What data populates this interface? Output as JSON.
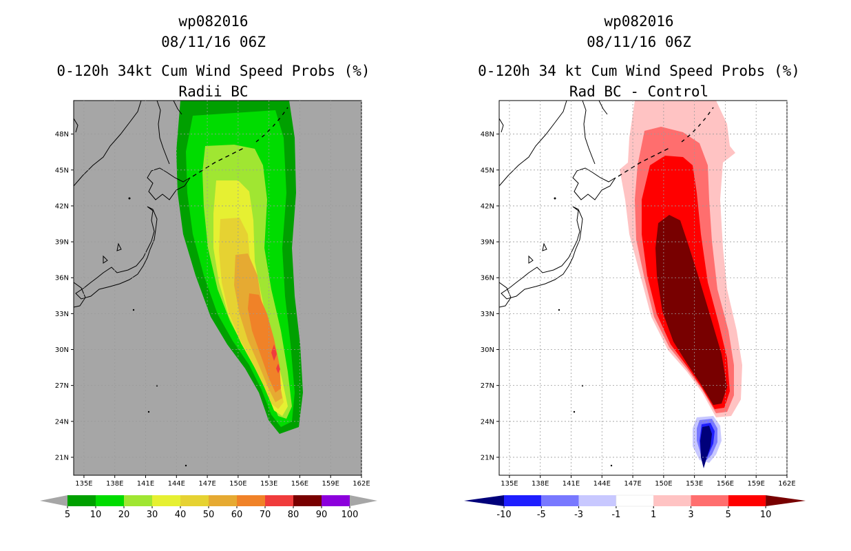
{
  "panels": [
    {
      "title_lines": [
        "wp082016",
        "08/11/16 06Z",
        "0-120h 34kt Cum Wind Speed Probs (%)",
        "Radii BC"
      ],
      "legend": [
        "5",
        "10",
        "20",
        "30",
        "40",
        "50",
        "60",
        "70",
        "80",
        "90",
        "100"
      ]
    },
    {
      "title_lines": [
        "wp082016",
        "08/11/16 06Z",
        "0-120h 34 kt Cum Wind Speed Probs (%)",
        "Rad BC - Control"
      ],
      "legend": [
        "-10",
        "-5",
        "-3",
        "-1",
        "1",
        "3",
        "5",
        "10"
      ]
    }
  ],
  "chart_data": [
    {
      "type": "heatmap",
      "title": "0-120h 34kt Cum Wind Speed Probs (%)",
      "subtitle": "Radii BC",
      "storm": "wp082016",
      "time": "08/11/16 06Z",
      "x_tick_labels": [
        "135E",
        "138E",
        "141E",
        "144E",
        "147E",
        "150E",
        "153E",
        "156E",
        "159E",
        "162E"
      ],
      "y_tick_labels": [
        "21N",
        "24N",
        "27N",
        "30N",
        "33N",
        "36N",
        "39N",
        "42N",
        "45N",
        "48N"
      ],
      "xlim": [
        134.0,
        162.0
      ],
      "ylim": [
        19.5,
        50.8
      ],
      "contour_levels": [
        5,
        10,
        20,
        30,
        40,
        50,
        60,
        70,
        80,
        90,
        100
      ],
      "level_colors": [
        "#00a000",
        "#00dc00",
        "#a0e632",
        "#e6f032",
        "#e6d232",
        "#e6aa32",
        "#f08228",
        "#f03c3c",
        "#780000",
        "#8c00dc"
      ],
      "background_color": "#a6a6a6",
      "max_value_approx": 72
    },
    {
      "type": "heatmap",
      "title": "0-120h 34 kt Cum Wind Speed Probs (%)",
      "subtitle": "Rad BC - Control",
      "storm": "wp082016",
      "time": "08/11/16 06Z",
      "x_tick_labels": [
        "135E",
        "138E",
        "141E",
        "144E",
        "147E",
        "150E",
        "153E",
        "156E",
        "159E",
        "162E"
      ],
      "y_tick_labels": [
        "21N",
        "24N",
        "27N",
        "30N",
        "33N",
        "36N",
        "39N",
        "42N",
        "45N",
        "48N"
      ],
      "xlim": [
        134.0,
        162.0
      ],
      "ylim": [
        19.5,
        50.8
      ],
      "contour_levels": [
        -10,
        -5,
        -3,
        -1,
        1,
        3,
        5,
        10
      ],
      "level_colors": [
        "#00007a",
        "#1e1eff",
        "#7878ff",
        "#c8c8ff",
        "#ffffff",
        "#ffc3c3",
        "#ff6e6e",
        "#ff0000",
        "#780000"
      ],
      "background_color": "#ffffff"
    }
  ]
}
